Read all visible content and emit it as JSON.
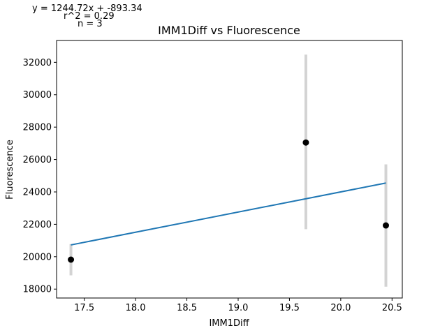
{
  "chart_data": {
    "type": "scatter",
    "title": "IMM1Diff vs Fluorescence",
    "xlabel": "IMM1Diff",
    "ylabel": "Fluorescence",
    "xlim": [
      17.23,
      20.6
    ],
    "ylim": [
      17450,
      33350
    ],
    "xticks": [
      17.5,
      18.0,
      18.5,
      19.0,
      19.5,
      20.0,
      20.5
    ],
    "xtick_labels": [
      "17.5",
      "18.0",
      "18.5",
      "19.0",
      "19.5",
      "20.0",
      "20.5"
    ],
    "yticks": [
      18000,
      20000,
      22000,
      24000,
      26000,
      28000,
      30000,
      32000
    ],
    "ytick_labels": [
      "18000",
      "20000",
      "22000",
      "24000",
      "26000",
      "28000",
      "30000",
      "32000"
    ],
    "grid": false,
    "points": [
      {
        "x": 17.37,
        "y": 19820,
        "err_low": 18850,
        "err_high": 20780
      },
      {
        "x": 19.66,
        "y": 27050,
        "err_low": 21700,
        "err_high": 32480
      },
      {
        "x": 20.44,
        "y": 21930,
        "err_low": 18150,
        "err_high": 25700
      }
    ],
    "fit_line": {
      "slope": 1244.72,
      "intercept": -893.34
    },
    "annotations": [
      "y = 1244.72x + -893.34",
      "r^2 = 0.29",
      "n = 3"
    ],
    "colors": {
      "points": "#000000",
      "errorbars": "#d3d3d3",
      "fit": "#1f77b4"
    }
  }
}
